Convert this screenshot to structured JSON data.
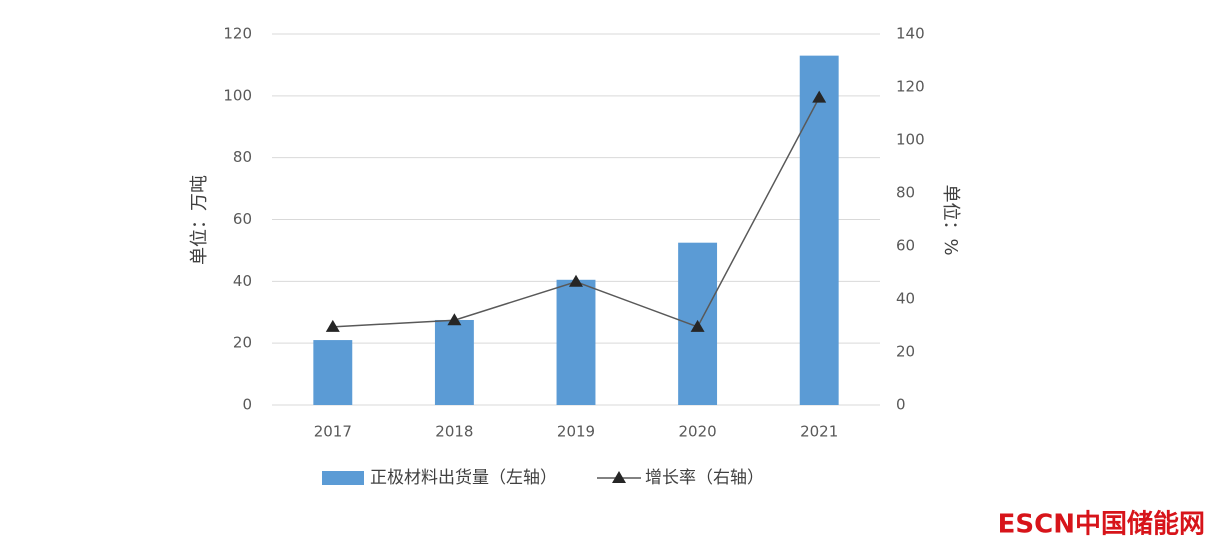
{
  "chart_data": {
    "type": "bar",
    "categories": [
      "2017",
      "2018",
      "2019",
      "2020",
      "2021"
    ],
    "series": [
      {
        "name": "正极材料出货量（左轴）",
        "type": "bar",
        "color": "#5b9bd5",
        "values": [
          21,
          27.5,
          40.5,
          52.5,
          113
        ]
      },
      {
        "name": "增长率（右轴）",
        "type": "line",
        "axis": "y2",
        "color": "#595959",
        "values": [
          29.5,
          32,
          46.5,
          29.5,
          116
        ]
      }
    ],
    "ylabel": "单位：万吨",
    "y2label": "单位：%",
    "ylim": [
      0,
      120
    ],
    "yticks": [
      0,
      20,
      40,
      60,
      80,
      100,
      120
    ],
    "y2lim": [
      0,
      140
    ],
    "y2ticks": [
      0,
      20,
      40,
      60,
      80,
      100,
      120,
      140
    ],
    "grid": true,
    "legend": "bottom",
    "watermark": "ESCN中国储能网"
  }
}
